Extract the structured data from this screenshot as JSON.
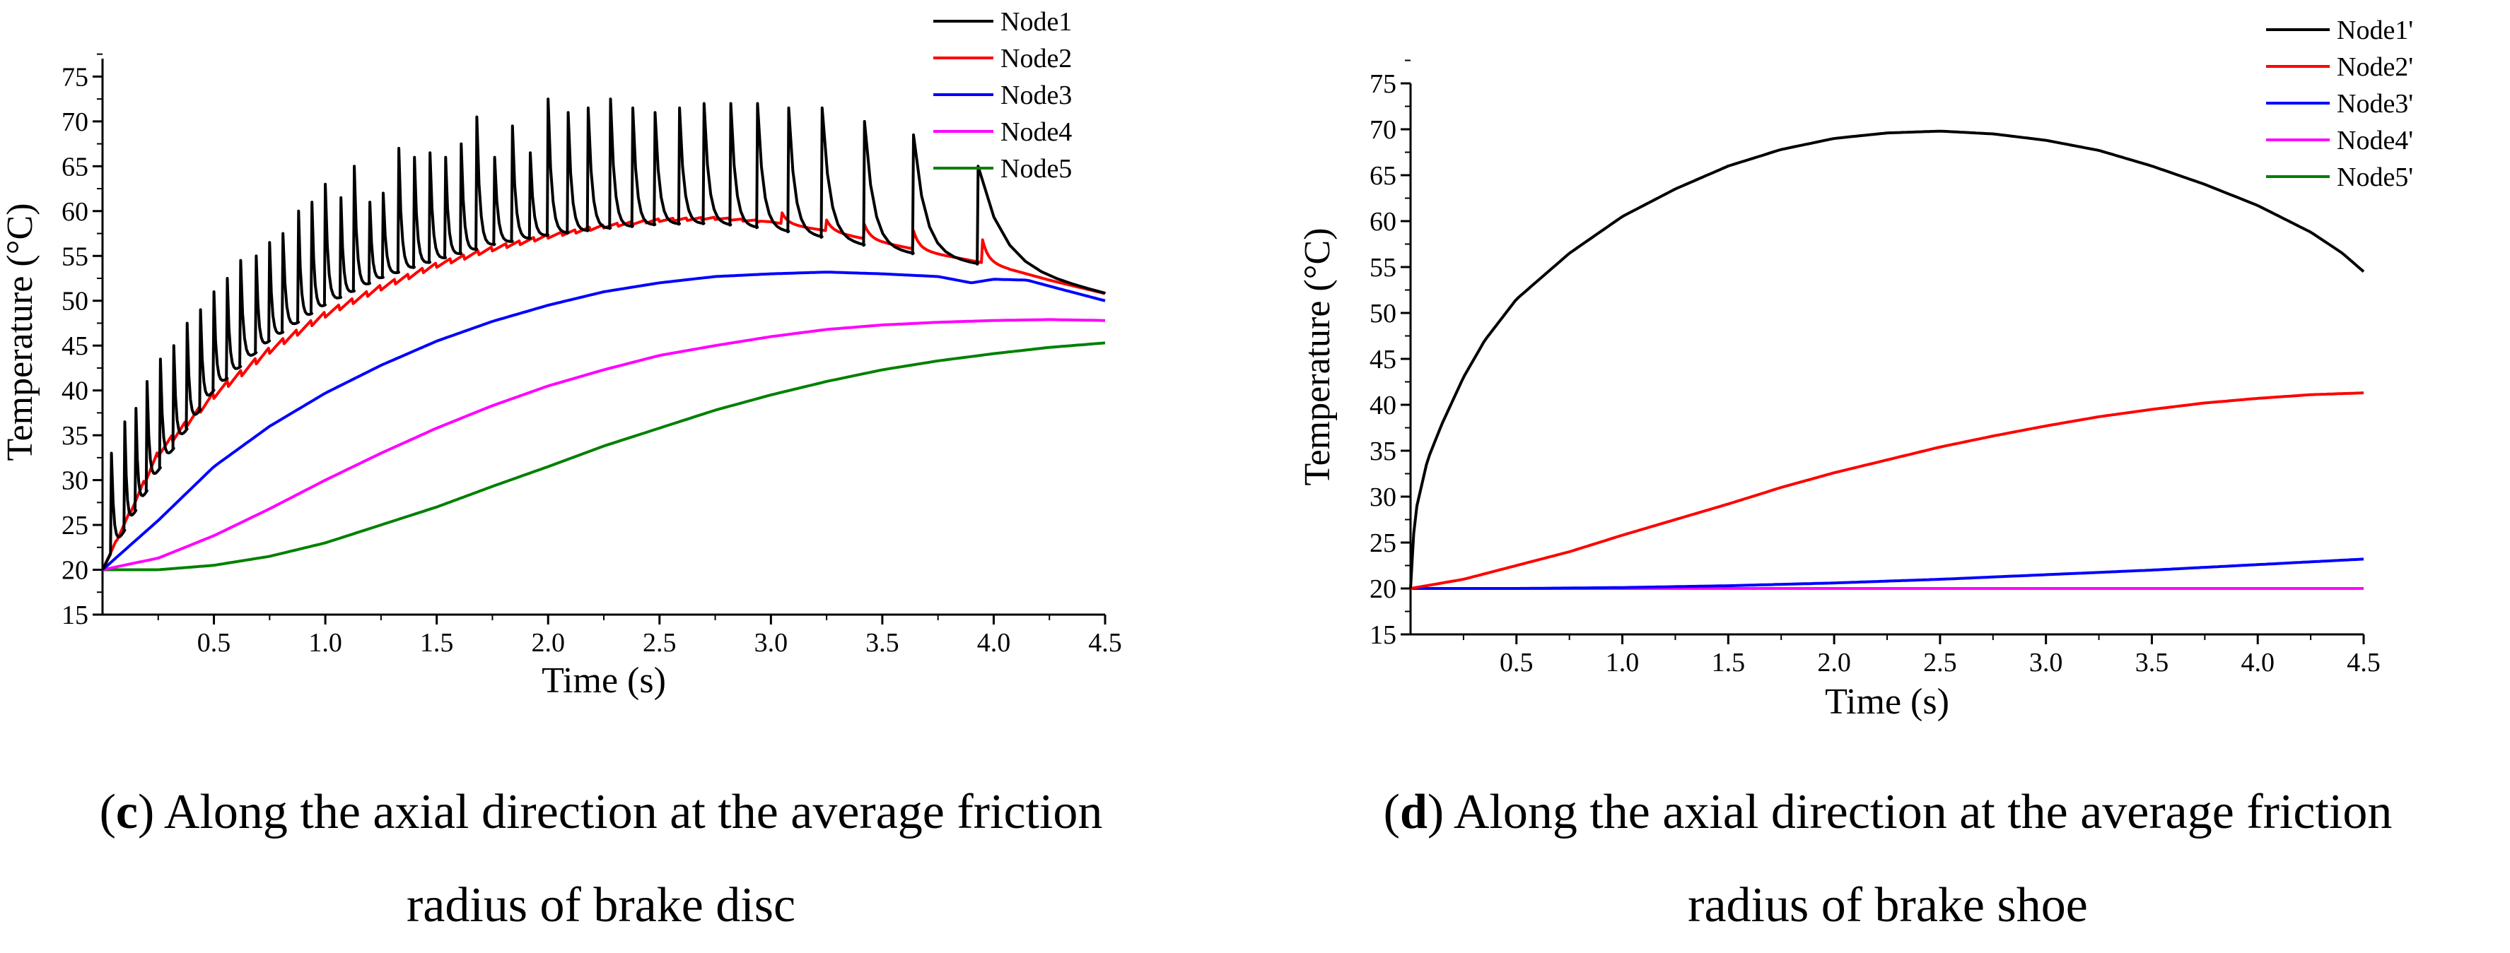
{
  "chart_data": [
    {
      "type": "line",
      "panel_letter": "c",
      "caption_line1": "Along the axial direction at the average friction",
      "caption_line2": "radius of brake disc",
      "xlabel": "Time (s)",
      "ylabel": "Temperature (°C)",
      "xlim": [
        0,
        4.5
      ],
      "ylim": [
        15,
        77
      ],
      "xticks": [
        "0.5",
        "1.0",
        "1.5",
        "2.0",
        "2.5",
        "3.0",
        "3.5",
        "4.0",
        "4.5"
      ],
      "yticks": [
        "15",
        "20",
        "25",
        "30",
        "35",
        "40",
        "45",
        "50",
        "55",
        "60",
        "65",
        "70",
        "75"
      ],
      "legend_position": "top-right",
      "series": [
        {
          "name": "Node1",
          "color": "#000000",
          "style": "sawtooth",
          "envelope_low": [
            [
              0,
              20
            ],
            [
              0.25,
              31
            ],
            [
              0.5,
              40
            ],
            [
              0.75,
              45.5
            ],
            [
              1.0,
              49.5
            ],
            [
              1.25,
              52.5
            ],
            [
              1.5,
              54.5
            ],
            [
              1.75,
              56.2
            ],
            [
              2.0,
              57.3
            ],
            [
              2.25,
              58
            ],
            [
              2.5,
              58.5
            ],
            [
              2.75,
              58.6
            ],
            [
              3.0,
              58
            ],
            [
              3.25,
              57
            ],
            [
              3.5,
              55.8
            ],
            [
              3.75,
              54.8
            ],
            [
              4.0,
              53.8
            ],
            [
              4.5,
              50.8
            ]
          ],
          "peak_times": [
            0.04,
            0.1,
            0.15,
            0.2,
            0.26,
            0.32,
            0.38,
            0.44,
            0.5,
            0.56,
            0.62,
            0.69,
            0.75,
            0.81,
            0.88,
            0.94,
            1.0,
            1.07,
            1.13,
            1.2,
            1.26,
            1.33,
            1.4,
            1.47,
            1.54,
            1.61,
            1.68,
            1.76,
            1.84,
            1.92,
            2.0,
            2.09,
            2.18,
            2.28,
            2.38,
            2.48,
            2.59,
            2.7,
            2.82,
            2.94,
            3.08,
            3.23,
            3.42,
            3.64,
            3.93
          ],
          "peak_values": [
            33,
            36.5,
            38,
            41,
            43.5,
            45,
            47.5,
            49,
            51,
            52.5,
            54.5,
            55,
            56.5,
            57.5,
            60,
            61,
            63,
            61.5,
            65,
            61,
            62,
            67,
            66,
            66.5,
            66,
            67.5,
            70.5,
            66,
            69.5,
            66.5,
            72.5,
            71,
            71.5,
            72.5,
            71.5,
            71,
            71.5,
            72,
            72,
            72,
            71.5,
            71.5,
            70,
            68.5,
            65
          ],
          "end_value": 50.8
        },
        {
          "name": "Node2",
          "color": "#ff0000",
          "style": "ripple",
          "points": [
            [
              0,
              20
            ],
            [
              0.25,
              33
            ],
            [
              0.5,
              39.5
            ],
            [
              0.75,
              44.5
            ],
            [
              1.0,
              48.5
            ],
            [
              1.25,
              51.5
            ],
            [
              1.5,
              54
            ],
            [
              1.75,
              55.8
            ],
            [
              2.0,
              57.2
            ],
            [
              2.25,
              58.3
            ],
            [
              2.5,
              59
            ],
            [
              2.75,
              59.2
            ],
            [
              3.0,
              58.8
            ],
            [
              3.25,
              57.8
            ],
            [
              3.5,
              56.5
            ],
            [
              3.75,
              55.2
            ],
            [
              4.0,
              54
            ],
            [
              4.25,
              52.3
            ],
            [
              4.5,
              50.8
            ]
          ],
          "peak_times": [
            3.05,
            3.25,
            3.42,
            3.64,
            3.95
          ],
          "peak_values": [
            59.8,
            59,
            58.5,
            57.8,
            56.8
          ]
        },
        {
          "name": "Node3",
          "color": "#0000ff",
          "style": "smooth",
          "points": [
            [
              0,
              20
            ],
            [
              0.25,
              25.5
            ],
            [
              0.5,
              31.5
            ],
            [
              0.75,
              36
            ],
            [
              1.0,
              39.7
            ],
            [
              1.25,
              42.8
            ],
            [
              1.5,
              45.5
            ],
            [
              1.75,
              47.7
            ],
            [
              2.0,
              49.5
            ],
            [
              2.25,
              51
            ],
            [
              2.5,
              52
            ],
            [
              2.75,
              52.7
            ],
            [
              3.0,
              53
            ],
            [
              3.25,
              53.2
            ],
            [
              3.5,
              53
            ],
            [
              3.75,
              52.7
            ],
            [
              3.9,
              52
            ],
            [
              4.0,
              52.4
            ],
            [
              4.15,
              52.3
            ],
            [
              4.3,
              51.3
            ],
            [
              4.5,
              50
            ]
          ]
        },
        {
          "name": "Node4",
          "color": "#ff00ff",
          "style": "smooth",
          "points": [
            [
              0,
              20
            ],
            [
              0.25,
              21.3
            ],
            [
              0.5,
              23.8
            ],
            [
              0.75,
              26.8
            ],
            [
              1.0,
              30
            ],
            [
              1.25,
              33
            ],
            [
              1.5,
              35.8
            ],
            [
              1.75,
              38.3
            ],
            [
              2.0,
              40.5
            ],
            [
              2.25,
              42.3
            ],
            [
              2.5,
              43.9
            ],
            [
              2.75,
              45
            ],
            [
              3.0,
              46
            ],
            [
              3.25,
              46.8
            ],
            [
              3.5,
              47.3
            ],
            [
              3.75,
              47.6
            ],
            [
              4.0,
              47.8
            ],
            [
              4.25,
              47.9
            ],
            [
              4.5,
              47.8
            ]
          ]
        },
        {
          "name": "Node5",
          "color": "#008000",
          "style": "smooth",
          "points": [
            [
              0,
              20
            ],
            [
              0.25,
              20
            ],
            [
              0.5,
              20.5
            ],
            [
              0.75,
              21.5
            ],
            [
              1.0,
              23
            ],
            [
              1.25,
              25
            ],
            [
              1.5,
              27
            ],
            [
              1.75,
              29.3
            ],
            [
              2.0,
              31.5
            ],
            [
              2.25,
              33.8
            ],
            [
              2.5,
              35.8
            ],
            [
              2.75,
              37.8
            ],
            [
              3.0,
              39.5
            ],
            [
              3.25,
              41
            ],
            [
              3.5,
              42.3
            ],
            [
              3.75,
              43.3
            ],
            [
              4.0,
              44.1
            ],
            [
              4.25,
              44.8
            ],
            [
              4.5,
              45.3
            ]
          ]
        }
      ]
    },
    {
      "type": "line",
      "panel_letter": "d",
      "caption_line1": "Along the axial direction at the average friction",
      "caption_line2": "radius of brake shoe",
      "xlabel": "Time (s)",
      "ylabel": "Temperature (°C)",
      "xlim": [
        0,
        4.5
      ],
      "ylim": [
        15,
        75
      ],
      "xticks": [
        "0.5",
        "1.0",
        "1.5",
        "2.0",
        "2.5",
        "3.0",
        "3.5",
        "4.0",
        "4.5"
      ],
      "yticks": [
        "15",
        "20",
        "25",
        "30",
        "35",
        "40",
        "45",
        "50",
        "55",
        "60",
        "65",
        "70",
        "75"
      ],
      "legend_position": "top-right",
      "series": [
        {
          "name": "Node1'",
          "color": "#000000",
          "style": "smooth",
          "points": [
            [
              0,
              20
            ],
            [
              0.02,
              28
            ],
            [
              0.05,
              31
            ],
            [
              0.08,
              34
            ],
            [
              0.15,
              38
            ],
            [
              0.25,
              43
            ],
            [
              0.35,
              47
            ],
            [
              0.5,
              51.5
            ],
            [
              0.75,
              56.5
            ],
            [
              1.0,
              60.5
            ],
            [
              1.25,
              63.5
            ],
            [
              1.5,
              66
            ],
            [
              1.75,
              67.8
            ],
            [
              2.0,
              69
            ],
            [
              2.25,
              69.6
            ],
            [
              2.5,
              69.8
            ],
            [
              2.75,
              69.5
            ],
            [
              3.0,
              68.8
            ],
            [
              3.25,
              67.7
            ],
            [
              3.5,
              66
            ],
            [
              3.75,
              64
            ],
            [
              4.0,
              61.7
            ],
            [
              4.25,
              58.8
            ],
            [
              4.4,
              56.5
            ],
            [
              4.5,
              54.5
            ]
          ]
        },
        {
          "name": "Node2'",
          "color": "#ff0000",
          "style": "smooth",
          "points": [
            [
              0,
              20
            ],
            [
              0.25,
              21
            ],
            [
              0.5,
              22.5
            ],
            [
              0.75,
              24
            ],
            [
              1.0,
              25.8
            ],
            [
              1.25,
              27.5
            ],
            [
              1.5,
              29.2
            ],
            [
              1.75,
              31
            ],
            [
              2.0,
              32.6
            ],
            [
              2.25,
              34
            ],
            [
              2.5,
              35.4
            ],
            [
              2.75,
              36.6
            ],
            [
              3.0,
              37.7
            ],
            [
              3.25,
              38.7
            ],
            [
              3.5,
              39.5
            ],
            [
              3.75,
              40.2
            ],
            [
              4.0,
              40.7
            ],
            [
              4.25,
              41.1
            ],
            [
              4.5,
              41.3
            ]
          ]
        },
        {
          "name": "Node3'",
          "color": "#0000ff",
          "style": "smooth",
          "points": [
            [
              0,
              20
            ],
            [
              0.5,
              20
            ],
            [
              1.0,
              20.1
            ],
            [
              1.5,
              20.3
            ],
            [
              2.0,
              20.6
            ],
            [
              2.5,
              21
            ],
            [
              3.0,
              21.5
            ],
            [
              3.5,
              22
            ],
            [
              4.0,
              22.6
            ],
            [
              4.5,
              23.2
            ]
          ]
        },
        {
          "name": "Node4'",
          "color": "#ff00ff",
          "style": "smooth",
          "points": [
            [
              0,
              20
            ],
            [
              4.5,
              20
            ]
          ]
        },
        {
          "name": "Node5'",
          "color": "#008000",
          "style": "smooth",
          "points": [
            [
              0,
              20
            ],
            [
              4.5,
              20
            ]
          ]
        }
      ]
    }
  ]
}
